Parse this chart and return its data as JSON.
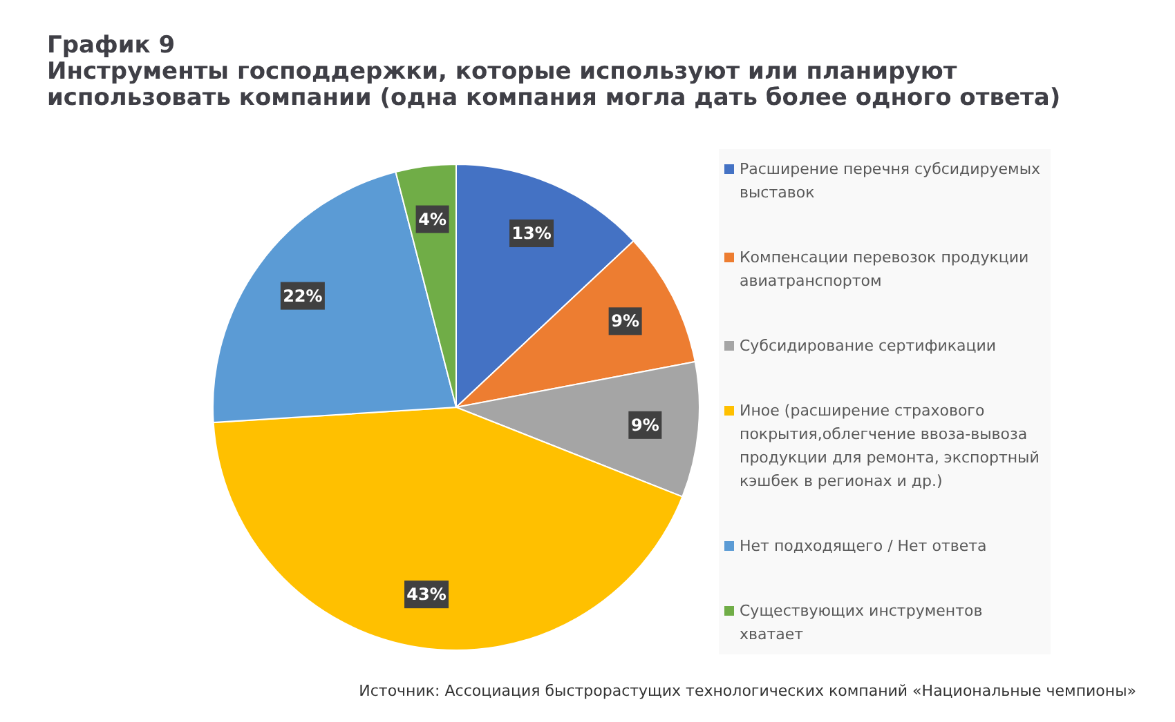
{
  "chart_data": {
    "type": "pie",
    "title": "График 9",
    "subtitle": "Инструменты господдержки, которые используют или планируют использовать компании (одна компания могла дать более одного ответа)",
    "categories": [
      "Расширение перечня субсидируемых выставок",
      "Компенсации перевозок продукции авиатранспортом",
      "Субсидирование сертификации",
      "Иное (расширение страхового покрытия,облегчение ввоза-вывоза продукции для ремонта, экспортный кэшбек в регионах и др.)",
      "Нет подходящего / Нет ответа",
      "Существующих инструментов хватает"
    ],
    "values": [
      13,
      9,
      9,
      43,
      22,
      4
    ],
    "value_labels": [
      "13%",
      "9%",
      "9%",
      "43%",
      "22%",
      "4%"
    ],
    "colors": [
      "#4472c4",
      "#ed7d31",
      "#a5a5a5",
      "#ffc000",
      "#5b9bd5",
      "#70ad47"
    ],
    "legend": "right",
    "annotations": [
      "Источник: Ассоциация быстрорастущих технологических компаний «Национальные чемпионы»"
    ]
  }
}
